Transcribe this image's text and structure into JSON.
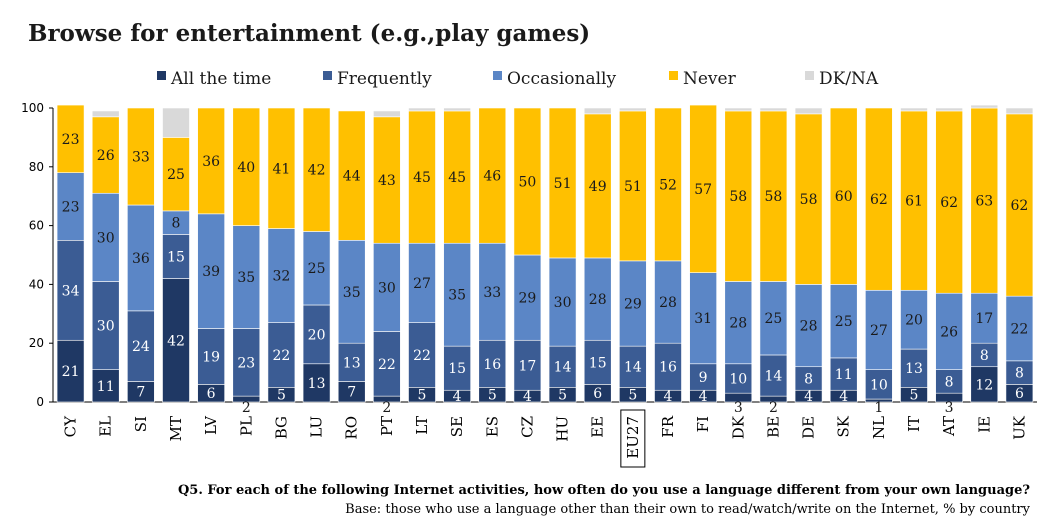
{
  "title": "Browse for entertainment (e.g.,play games)",
  "footnote_question": "Q5. For each of the following Internet activities, how often do you use a language different from your own language?",
  "footnote_base": "Base: those who use a language other than their own to read/watch/write on the Internet, % by country",
  "colors": {
    "All the time": "#1f3864",
    "Frequently": "#3b5c94",
    "Occasionally": "#5b86c6",
    "Never": "#ffc000",
    "DK/NA": "#d9d9d9"
  },
  "chart_data": {
    "type": "bar",
    "stacked": true,
    "ylim": [
      0,
      100
    ],
    "yticks": [
      0,
      20,
      40,
      60,
      80,
      100
    ],
    "highlight_category": "EU27",
    "legend_position": "top",
    "categories": [
      "CY",
      "EL",
      "SI",
      "MT",
      "LV",
      "PL",
      "BG",
      "LU",
      "RO",
      "PT",
      "LT",
      "SE",
      "ES",
      "CZ",
      "HU",
      "EE",
      "EU27",
      "FR",
      "FI",
      "DK",
      "BE",
      "DE",
      "SK",
      "NL",
      "IT",
      "AT",
      "IE",
      "UK"
    ],
    "series": [
      {
        "name": "All the time",
        "values": [
          21,
          11,
          7,
          42,
          6,
          2,
          5,
          13,
          7,
          2,
          5,
          4,
          5,
          4,
          5,
          6,
          5,
          4,
          4,
          3,
          2,
          4,
          4,
          1,
          5,
          3,
          12,
          6
        ],
        "labels": [
          "21",
          "11",
          "7",
          "42",
          "6",
          "2",
          "5",
          "13",
          "7",
          "2",
          "5",
          "4",
          "5",
          "4",
          "5",
          "6",
          "5",
          "4",
          "4",
          "3",
          "2",
          "4",
          "4",
          "1",
          "5",
          "3",
          "12",
          "6"
        ]
      },
      {
        "name": "Frequently",
        "values": [
          34,
          30,
          24,
          15,
          19,
          23,
          22,
          20,
          13,
          22,
          22,
          15,
          16,
          17,
          14,
          15,
          14,
          16,
          9,
          10,
          14,
          8,
          11,
          10,
          13,
          8,
          8,
          8
        ],
        "labels": [
          "34",
          "30",
          "24",
          "15",
          "19",
          "23",
          "22",
          "20",
          "13",
          "22",
          "22",
          "15",
          "16",
          "17",
          "14",
          "15",
          "14",
          "16",
          "9",
          "10",
          "14",
          "8",
          "11",
          "10",
          "13",
          "8",
          "8",
          "8"
        ]
      },
      {
        "name": "Occasionally",
        "values": [
          23,
          30,
          36,
          8,
          39,
          35,
          32,
          25,
          35,
          30,
          27,
          35,
          33,
          29,
          30,
          28,
          29,
          28,
          31,
          28,
          25,
          28,
          25,
          27,
          20,
          26,
          17,
          22
        ],
        "labels": [
          "23",
          "30",
          "36",
          "8",
          "39",
          "35",
          "32",
          "25",
          "35",
          "30",
          "27",
          "35",
          "33",
          "29",
          "30",
          "28",
          "29",
          "28",
          "31",
          "28",
          "25",
          "28",
          "25",
          "27",
          "20",
          "26",
          "17",
          "22"
        ]
      },
      {
        "name": "Never",
        "values": [
          23,
          26,
          33,
          25,
          36,
          40,
          41,
          42,
          44,
          43,
          45,
          45,
          46,
          50,
          51,
          49,
          51,
          52,
          57,
          58,
          58,
          58,
          60,
          62,
          61,
          62,
          63,
          62
        ],
        "labels": [
          "23",
          "26",
          "33",
          "25",
          "36",
          "40",
          "41",
          "42",
          "44",
          "43",
          "45",
          "45",
          "46",
          "50",
          "51",
          "49",
          "51",
          "52",
          "57",
          "58",
          "58",
          "58",
          "60",
          "62",
          "61",
          "62",
          "63",
          "62"
        ]
      },
      {
        "name": "DK/NA",
        "values": [
          0,
          2,
          0,
          10,
          0,
          0,
          0,
          0,
          0,
          2,
          1,
          1,
          0,
          0,
          0,
          2,
          1,
          0,
          0,
          1,
          1,
          2,
          0,
          0,
          1,
          1,
          1,
          2
        ],
        "labels": [
          "",
          "",
          "",
          "",
          "",
          "",
          "",
          "",
          "",
          "",
          "",
          "",
          "",
          "",
          "",
          "",
          "",
          "",
          "",
          "",
          "",
          "",
          "",
          "",
          "",
          "",
          "",
          ""
        ]
      }
    ]
  }
}
